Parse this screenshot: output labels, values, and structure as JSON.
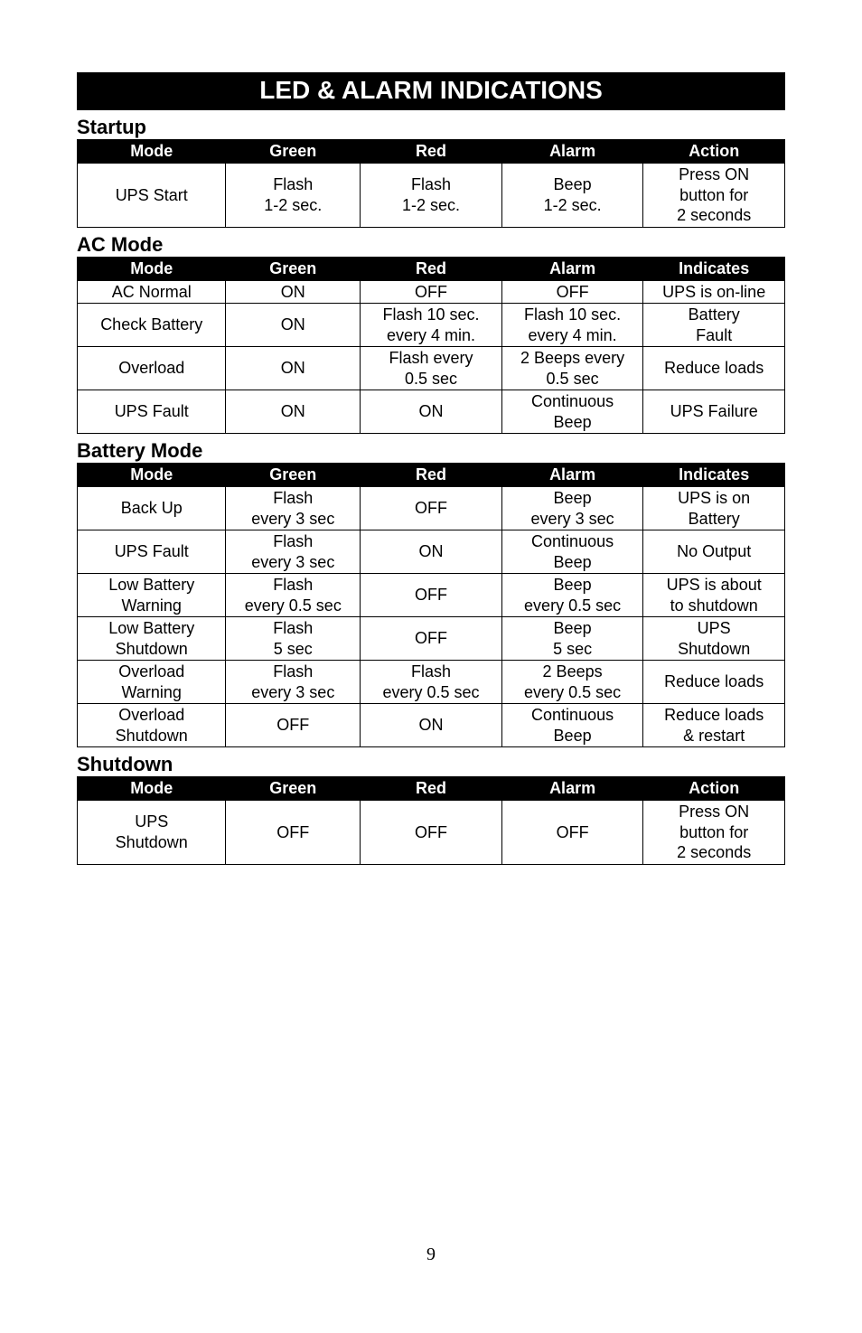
{
  "banner": "LED & ALARM INDICATIONS",
  "pageNumber": "9",
  "sections": {
    "startup": {
      "title": "Startup",
      "headers": [
        "Mode",
        "Green",
        "Red",
        "Alarm",
        "Action"
      ],
      "rows": [
        {
          "mode": "UPS Start",
          "green": "Flash\n1-2 sec.",
          "red": "Flash\n1-2 sec.",
          "alarm": "Beep\n1-2 sec.",
          "last": "Press ON\nbutton for\n2 seconds"
        }
      ]
    },
    "acmode": {
      "title": "AC Mode",
      "headers": [
        "Mode",
        "Green",
        "Red",
        "Alarm",
        "Indicates"
      ],
      "rows": [
        {
          "mode": "AC Normal",
          "green": "ON",
          "red": "OFF",
          "alarm": "OFF",
          "last": "UPS is on-line"
        },
        {
          "mode": "Check Battery",
          "green": "ON",
          "red": "Flash 10 sec.\nevery 4 min.",
          "alarm": "Flash 10 sec.\nevery 4 min.",
          "last": "Battery\nFault"
        },
        {
          "mode": "Overload",
          "green": "ON",
          "red": "Flash every\n0.5 sec",
          "alarm": "2 Beeps every\n0.5 sec",
          "last": "Reduce loads"
        },
        {
          "mode": "UPS Fault",
          "green": "ON",
          "red": "ON",
          "alarm": "Continuous\nBeep",
          "last": "UPS Failure"
        }
      ]
    },
    "batterymode": {
      "title": "Battery Mode",
      "headers": [
        "Mode",
        "Green",
        "Red",
        "Alarm",
        "Indicates"
      ],
      "rows": [
        {
          "mode": "Back Up",
          "green": "Flash\nevery 3 sec",
          "red": "OFF",
          "alarm": "Beep\nevery 3 sec",
          "last": "UPS is on\nBattery"
        },
        {
          "mode": "UPS Fault",
          "green": "Flash\nevery 3 sec",
          "red": "ON",
          "alarm": "Continuous\nBeep",
          "last": "No Output"
        },
        {
          "mode": "Low Battery\nWarning",
          "green": "Flash\nevery 0.5 sec",
          "red": "OFF",
          "alarm": "Beep\nevery 0.5  sec",
          "last": "UPS is about\nto shutdown"
        },
        {
          "mode": "Low Battery\nShutdown",
          "green": "Flash\n5 sec",
          "red": "OFF",
          "alarm": "Beep\n5 sec",
          "last": "UPS\nShutdown"
        },
        {
          "mode": "Overload\nWarning",
          "green": "Flash\nevery 3 sec",
          "red": "Flash\nevery 0.5 sec",
          "alarm": "2 Beeps\nevery 0.5 sec",
          "last": "Reduce loads"
        },
        {
          "mode": "Overload\nShutdown",
          "green": "OFF",
          "red": "ON",
          "alarm": "Continuous\nBeep",
          "last": "Reduce loads\n& restart"
        }
      ]
    },
    "shutdown": {
      "title": "Shutdown",
      "headers": [
        "Mode",
        "Green",
        "Red",
        "Alarm",
        "Action"
      ],
      "rows": [
        {
          "mode": "UPS\nShutdown",
          "green": "OFF",
          "red": "OFF",
          "alarm": "OFF",
          "last": "Press ON\nbutton for\n2 seconds"
        }
      ]
    }
  }
}
